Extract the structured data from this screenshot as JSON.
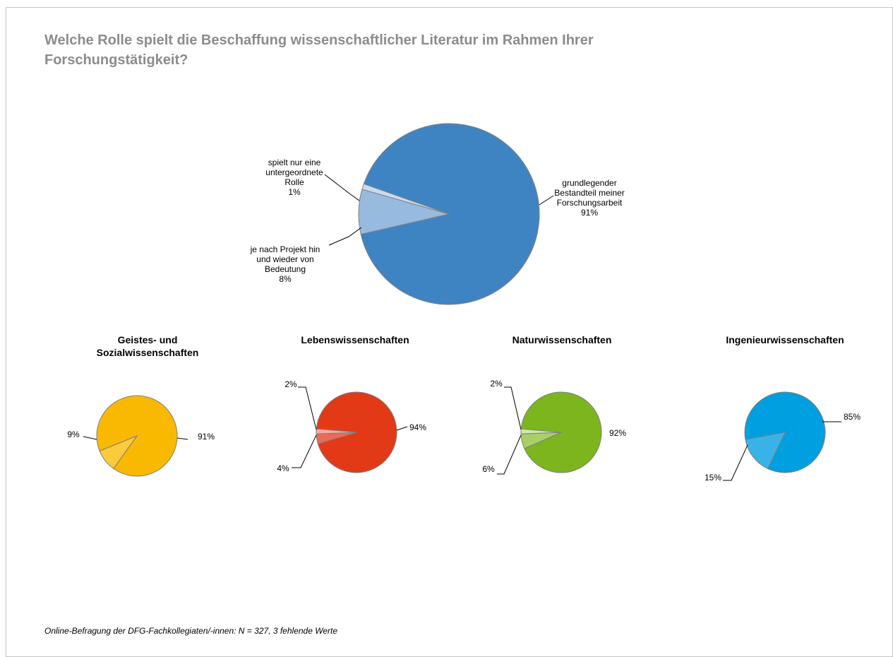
{
  "title": "Welche Rolle spielt die Beschaffung wissenschaftlicher Literatur im Rahmen Ihrer Forschungstätigkeit?",
  "footnote": "Online-Befragung der DFG-Fachkollegiaten/-innen: N = 327, 3 fehlende Werte",
  "chart_data": [
    {
      "type": "pie",
      "title": "",
      "categories": [
        "grundlegender Bestandteil meiner Forschungsarbeit",
        "je nach Projekt hin und wieder von Bedeutung",
        "spielt nur eine untergeordnete Rolle"
      ],
      "values": [
        91,
        8,
        1
      ],
      "value_labels": [
        "91%",
        "8%",
        "1%"
      ],
      "colors": [
        "#3f84c2",
        "#97badf",
        "#c7daef"
      ]
    },
    {
      "type": "pie",
      "title": "Geistes- und Sozialwissenschaften",
      "values": [
        91,
        9
      ],
      "value_labels": [
        "91%",
        "9%"
      ],
      "colors": [
        "#f9b900",
        "#fbcb3c"
      ]
    },
    {
      "type": "pie",
      "title": "Lebenswissenschaften",
      "values": [
        94,
        4,
        2
      ],
      "value_labels": [
        "94%",
        "4%",
        "2%"
      ],
      "colors": [
        "#e23917",
        "#ea6b55",
        "#f4aaa0"
      ]
    },
    {
      "type": "pie",
      "title": "Naturwissenschaften",
      "values": [
        92,
        6,
        2
      ],
      "value_labels": [
        "92%",
        "6%",
        "2%"
      ],
      "colors": [
        "#7cb51e",
        "#a8d067",
        "#d1e6ad"
      ]
    },
    {
      "type": "pie",
      "title": "Ingenieurwissenschaften",
      "values": [
        85,
        15
      ],
      "value_labels": [
        "85%",
        "15%"
      ],
      "colors": [
        "#009fe0",
        "#39b3e7"
      ]
    }
  ]
}
